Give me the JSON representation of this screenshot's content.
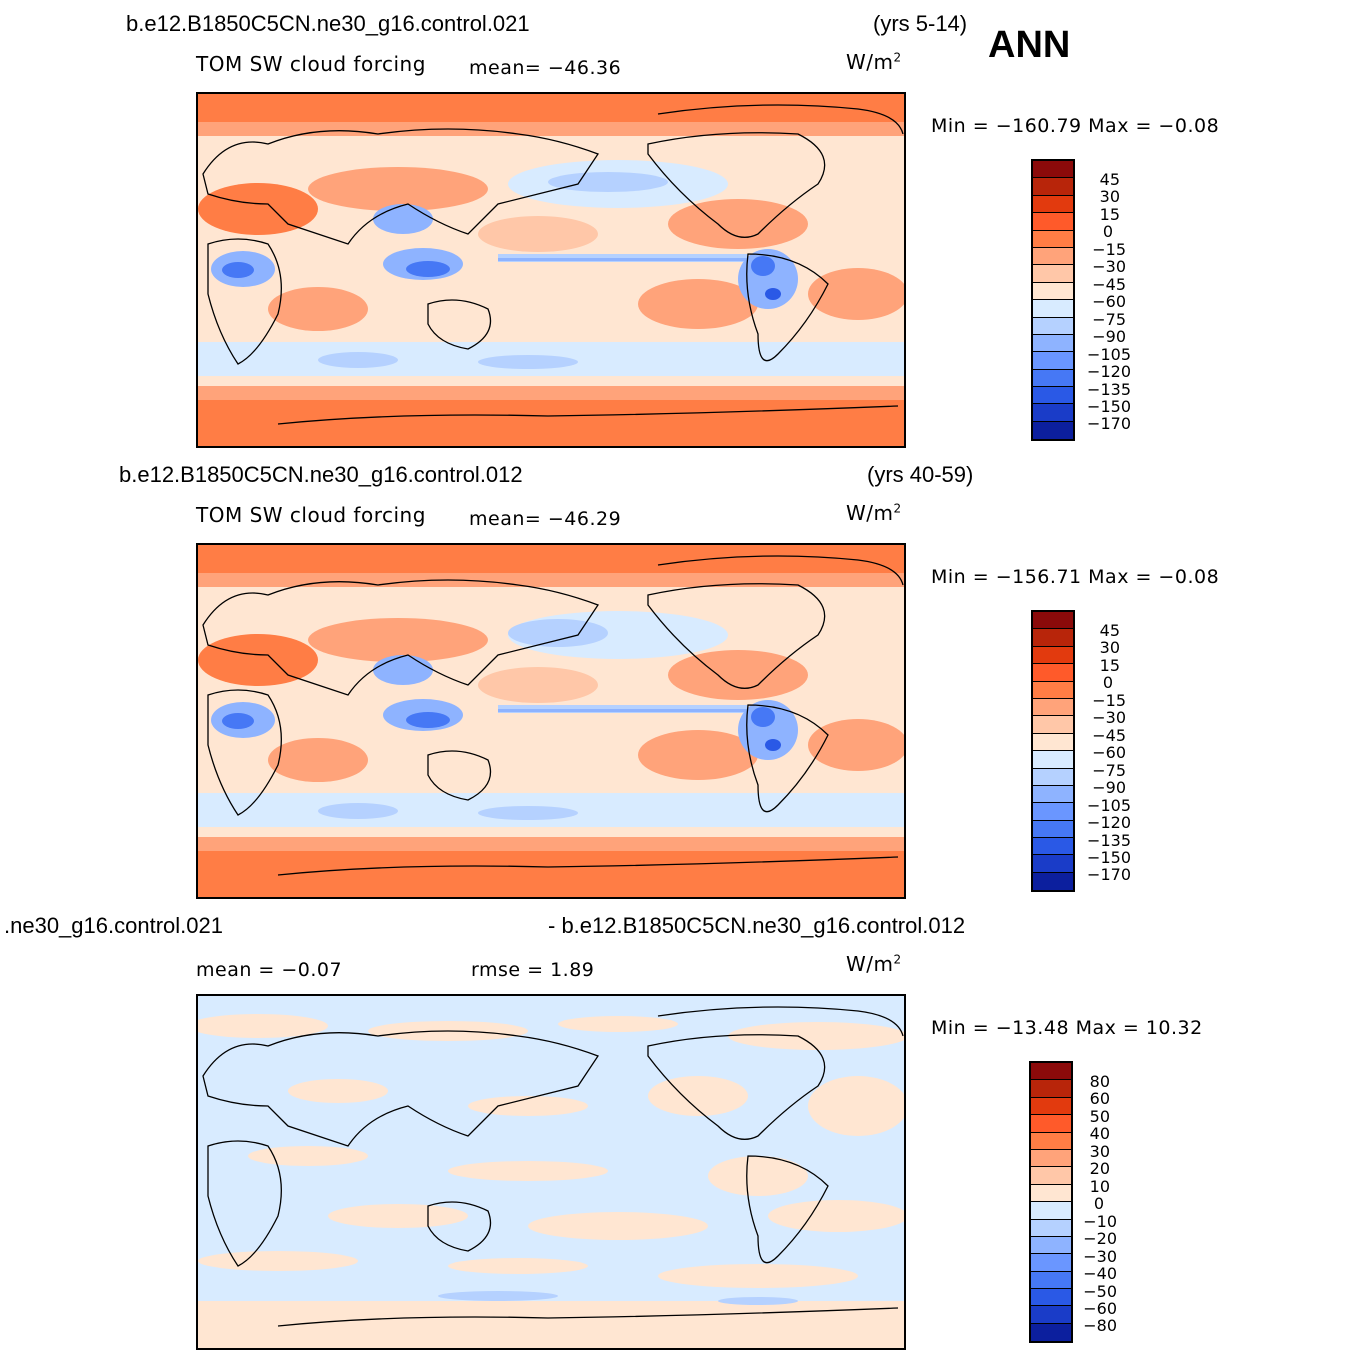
{
  "season": "ANN",
  "panels": [
    {
      "case": "b.e12.B1850C5CN.ne30_g16.control.021",
      "years": "(yrs 5-14)",
      "variable": "TOM SW cloud forcing",
      "stat1": "mean=  −46.36",
      "stat2": "",
      "units": "W/m",
      "units_sup": "2",
      "minmax": "Min  =  −160.79  Max  =    −0.08",
      "colorbar_levels": [
        "45",
        "30",
        "15",
        "0",
        "−15",
        "−30",
        "−45",
        "−60",
        "−75",
        "−90",
        "−105",
        "−120",
        "−135",
        "−150",
        "−170"
      ],
      "colorbar_colors": [
        "#8b0a0a",
        "#b8250a",
        "#e23a0e",
        "#ff5a2a",
        "#ff7d45",
        "#ffa37a",
        "#ffc7a8",
        "#ffe6d2",
        "#d8ebff",
        "#b5d1ff",
        "#8eb3ff",
        "#6a96ff",
        "#4678f5",
        "#2a59e6",
        "#1a3cc8",
        "#0c1f9e"
      ]
    },
    {
      "case": "b.e12.B1850C5CN.ne30_g16.control.012",
      "years": "(yrs 40-59)",
      "variable": "TOM SW cloud forcing",
      "stat1": "mean=  −46.29",
      "stat2": "",
      "units": "W/m",
      "units_sup": "2",
      "minmax": "Min  =  −156.71  Max  =    −0.08",
      "colorbar_levels": [
        "45",
        "30",
        "15",
        "0",
        "−15",
        "−30",
        "−45",
        "−60",
        "−75",
        "−90",
        "−105",
        "−120",
        "−135",
        "−150",
        "−170"
      ],
      "colorbar_colors": [
        "#8b0a0a",
        "#b8250a",
        "#e23a0e",
        "#ff5a2a",
        "#ff7d45",
        "#ffa37a",
        "#ffc7a8",
        "#ffe6d2",
        "#d8ebff",
        "#b5d1ff",
        "#8eb3ff",
        "#6a96ff",
        "#4678f5",
        "#2a59e6",
        "#1a3cc8",
        "#0c1f9e"
      ]
    },
    {
      "case_left": ".ne30_g16.control.021",
      "case_right": "- b.e12.B1850C5CN.ne30_g16.control.012",
      "stat1": "mean  =    −0.07",
      "stat2": "rmse  =     1.89",
      "units": "W/m",
      "units_sup": "2",
      "minmax": "Min  =  −13.48  Max  =     10.32",
      "colorbar_levels": [
        "80",
        "60",
        "50",
        "40",
        "30",
        "20",
        "10",
        "0",
        "−10",
        "−20",
        "−30",
        "−40",
        "−50",
        "−60",
        "−80"
      ],
      "colorbar_colors": [
        "#8b0a0a",
        "#b8250a",
        "#e23a0e",
        "#ff5a2a",
        "#ff7d45",
        "#ffa37a",
        "#ffc7a8",
        "#ffe6d2",
        "#d8ebff",
        "#b5d1ff",
        "#8eb3ff",
        "#6a96ff",
        "#4678f5",
        "#2a59e6",
        "#1a3cc8",
        "#0c1f9e"
      ]
    }
  ]
}
